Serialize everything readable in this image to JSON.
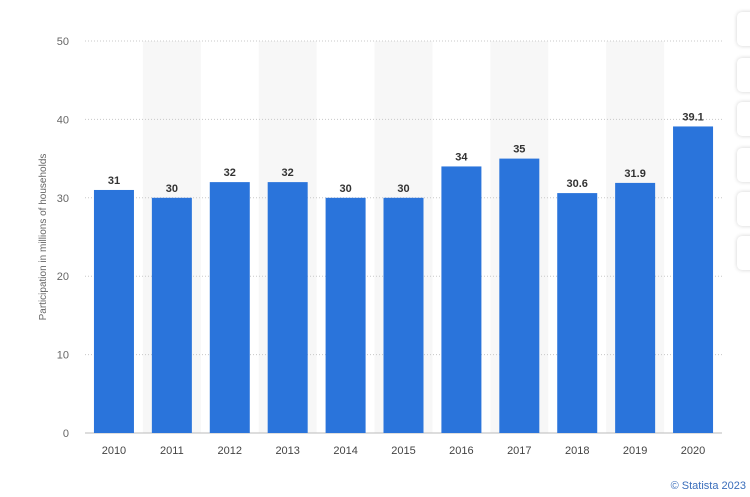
{
  "chart_data": {
    "type": "bar",
    "categories": [
      "2010",
      "2011",
      "2012",
      "2013",
      "2014",
      "2015",
      "2016",
      "2017",
      "2018",
      "2019",
      "2020"
    ],
    "values": [
      31,
      30,
      32,
      32,
      30,
      30,
      34,
      35,
      30.6,
      31.9,
      39.1
    ],
    "value_labels": [
      "31",
      "30",
      "32",
      "32",
      "30",
      "30",
      "34",
      "35",
      "30.6",
      "31.9",
      "39.1"
    ],
    "ylabel": "Participation in millions of households",
    "xlabel": "",
    "ylim": [
      0,
      50
    ],
    "yticks": [
      0,
      10,
      20,
      30,
      40,
      50
    ],
    "grid": "horizontal dotted",
    "bar_color": "#2a74db",
    "alt_band_color": "#f7f7f7"
  },
  "credit": "© Statista 2023",
  "toolbar": {
    "buttons": [
      "toolbar-button-1",
      "toolbar-button-2",
      "toolbar-button-3",
      "toolbar-button-4",
      "toolbar-button-5",
      "toolbar-button-6"
    ]
  }
}
